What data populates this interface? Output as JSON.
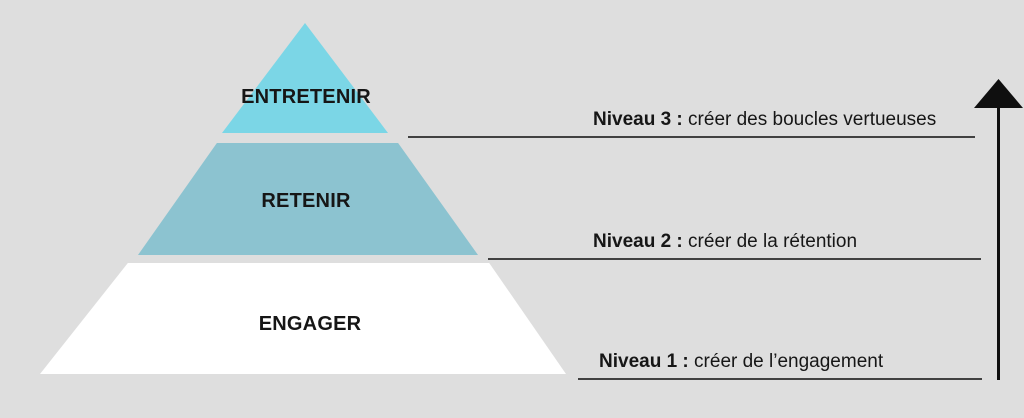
{
  "diagram": {
    "background_color": "#dedede",
    "text_color": "#161616",
    "rule_color": "#414141",
    "arrow_color": "#0f0f0f"
  },
  "pyramid": {
    "levels": [
      {
        "rank": 3,
        "label": "ENTRETENIR",
        "color": "#7bd6e6"
      },
      {
        "rank": 2,
        "label": "RETENIR",
        "color": "#8cc3d0"
      },
      {
        "rank": 1,
        "label": "ENGAGER",
        "color": "#ffffff"
      }
    ]
  },
  "annotations": [
    {
      "level": "Niveau 3 : ",
      "text": "créer des boucles vertueuses"
    },
    {
      "level": "Niveau 2 : ",
      "text": "créer de la rétention"
    },
    {
      "level": "Niveau 1 : ",
      "text": "créer de l’engagement"
    }
  ],
  "arrow": {
    "direction": "up"
  }
}
